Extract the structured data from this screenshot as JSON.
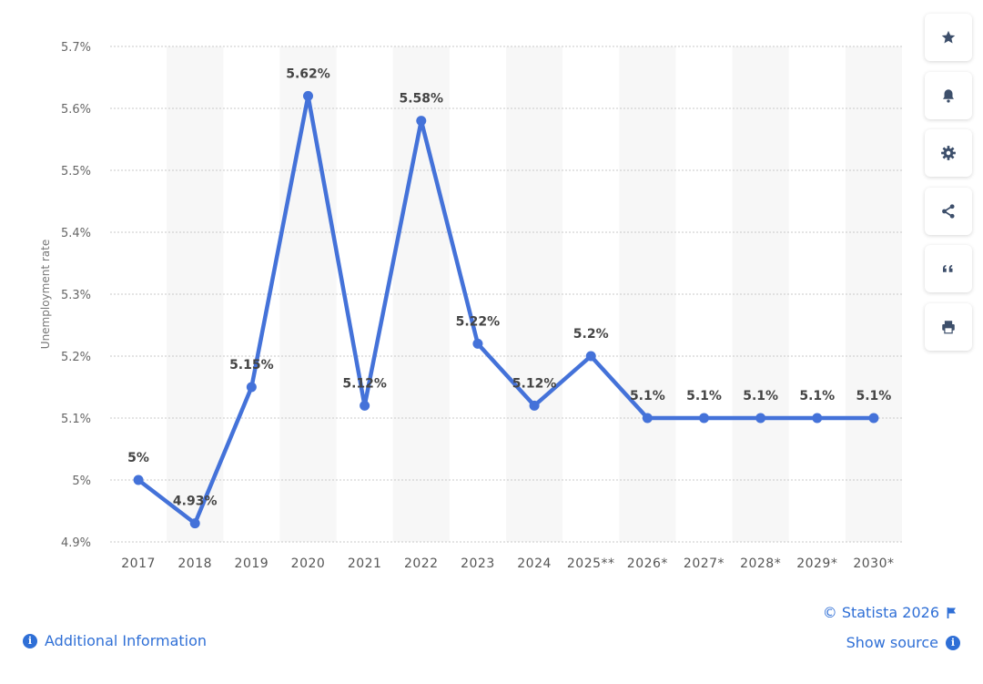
{
  "chart_data": {
    "type": "line",
    "categories": [
      "2017",
      "2018",
      "2019",
      "2020",
      "2021",
      "2022",
      "2023",
      "2024",
      "2025**",
      "2026*",
      "2027*",
      "2028*",
      "2029*",
      "2030*"
    ],
    "values": [
      5.0,
      4.93,
      5.15,
      5.62,
      5.12,
      5.58,
      5.22,
      5.12,
      5.2,
      5.1,
      5.1,
      5.1,
      5.1,
      5.1
    ],
    "data_labels": [
      "5%",
      "4.93%",
      "5.15%",
      "5.62%",
      "5.12%",
      "5.58%",
      "5.22%",
      "5.12%",
      "5.2%",
      "5.1%",
      "5.1%",
      "5.1%",
      "5.1%",
      "5.1%"
    ],
    "ylabel": "Unemployment rate",
    "ylim": [
      4.9,
      5.7
    ],
    "yticks": [
      4.9,
      5.0,
      5.1,
      5.2,
      5.3,
      5.4,
      5.5,
      5.6,
      5.7
    ],
    "ytick_labels": [
      "4.9%",
      "5%",
      "5.1%",
      "5.2%",
      "5.3%",
      "5.4%",
      "5.5%",
      "5.6%",
      "5.7%"
    ],
    "grid": true,
    "line_color": "#4472d9",
    "band_color": "#f7f7f7"
  },
  "toolbar": {
    "buttons": [
      {
        "name": "favorite-star-icon"
      },
      {
        "name": "notification-bell-icon"
      },
      {
        "name": "settings-gear-icon"
      },
      {
        "name": "share-icon"
      },
      {
        "name": "quote-icon"
      },
      {
        "name": "print-icon"
      }
    ]
  },
  "footer": {
    "additional_info": "Additional Information",
    "copyright": "© Statista 2026",
    "show_source": "Show source",
    "info_glyph": "i"
  },
  "colors": {
    "accent": "#2f6fd6",
    "button_icon": "#3d4f6b"
  }
}
